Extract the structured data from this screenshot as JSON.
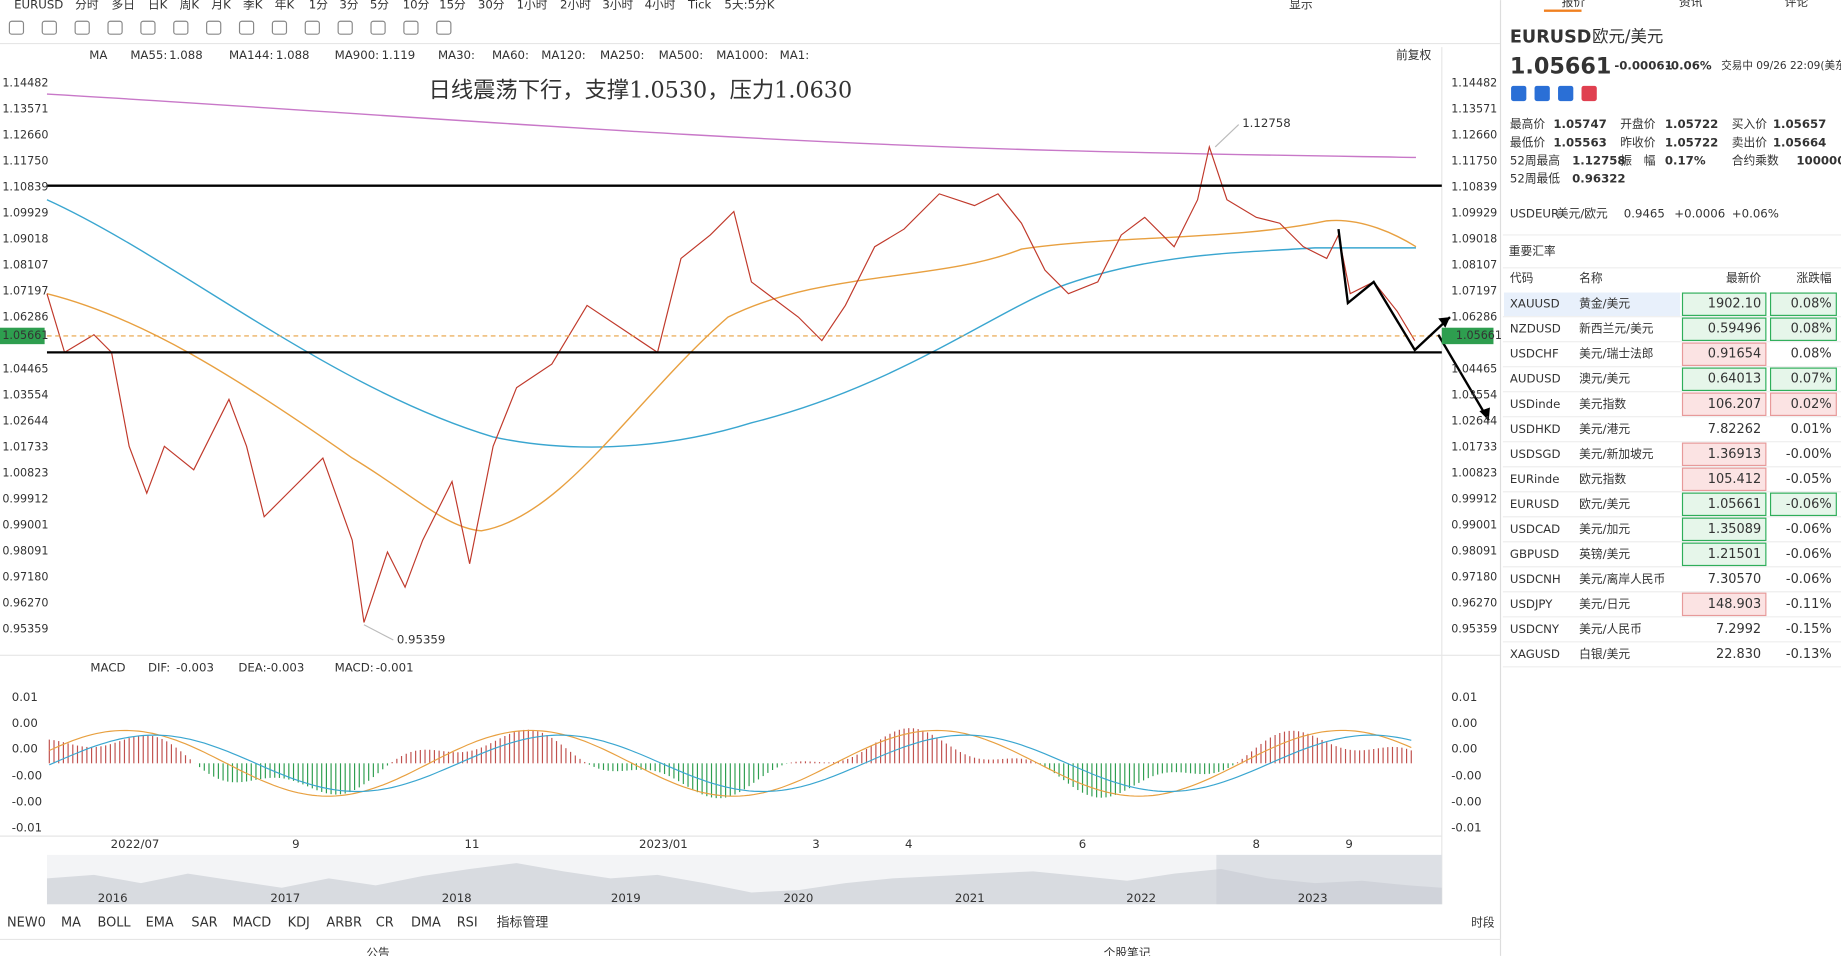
{
  "toolbar": {
    "symbol": "EURUSD",
    "periods": [
      "分时",
      "多日",
      "日K",
      "周K",
      "月K",
      "季K",
      "年K",
      "1分",
      "3分",
      "5分",
      "10分",
      "15分",
      "30分",
      "1小时",
      "2小时",
      "3小时",
      "4小时",
      "Tick",
      "5天:5分K"
    ],
    "active_period": 2,
    "display": "显示"
  },
  "chart": {
    "indicator": "MA",
    "ma": [
      {
        "name": "MA55:",
        "value": "1.088",
        "color": "#e8a040"
      },
      {
        "name": "MA144:",
        "value": "1.088",
        "color": "#3aa6d0"
      },
      {
        "name": "MA900:",
        "value": "1.119",
        "color": "#c060c0"
      }
    ],
    "ma_inactive": [
      "MA30:",
      "MA60:",
      "MA120:",
      "MA250:",
      "MA500:",
      "MA1000:",
      "MA1:"
    ],
    "adjust": "前复权",
    "annotation": "日线震荡下行，支撑1.0530，压力1.0630",
    "price_ticks": [
      "1.14482",
      "1.13571",
      "1.12660",
      "1.11750",
      "1.10839",
      "1.09929",
      "1.09018",
      "1.08107",
      "1.07197",
      "1.06286",
      "1.04465",
      "1.03554",
      "1.02644",
      "1.01733",
      "1.00823",
      "0.99912",
      "0.99001",
      "0.98091",
      "0.97180",
      "0.96270",
      "0.95359"
    ],
    "current_price": "1.05661",
    "high_label": "1.12758",
    "low_label": "0.95359"
  },
  "macd": {
    "name": "MACD",
    "params": [
      {
        "name": "DIF:",
        "value": "-0.003",
        "color": "#e8a040"
      },
      {
        "name": "DEA:",
        "value": "-0.003",
        "color": "#3aa6d0"
      },
      {
        "name": "MACD:",
        "value": "-0.001",
        "color": "#c060c0"
      }
    ],
    "ticks": [
      "0.01",
      "0.00",
      "0.00",
      "-0.00",
      "-0.00",
      "-0.01"
    ]
  },
  "x_labels": [
    "2022/07",
    "9",
    "11",
    "2023/01",
    "3",
    "4",
    "6",
    "8",
    "9"
  ],
  "navigator_years": [
    "2016",
    "2017",
    "2018",
    "2019",
    "2020",
    "2021",
    "2022",
    "2023"
  ],
  "tabs": [
    "NEW0",
    "MA",
    "BOLL",
    "EMA",
    "SAR",
    "MACD",
    "KDJ",
    "ARBR",
    "CR",
    "DMA",
    "RSI",
    "指标管理"
  ],
  "period_button": "时段",
  "footer": [
    "公告",
    "个股笔记"
  ],
  "panel": {
    "tabs": [
      "报价",
      "资讯",
      "评论"
    ],
    "symbol": "EURUSD",
    "name": "欧元/美元",
    "price": "1.05661",
    "change": "-0.00061",
    "change_pct": "-0.06%",
    "status": "交易中 09/26 22:09(美东",
    "stats": [
      [
        "最高价",
        "1.05747",
        "开盘价",
        "1.05722",
        "买入价",
        "1.05657"
      ],
      [
        "最低价",
        "1.05563",
        "昨收价",
        "1.05722",
        "卖出价",
        "1.05664"
      ],
      [
        "52周最高",
        "1.12758",
        "振　幅",
        "0.17%",
        "合约乘数",
        "100000"
      ],
      [
        "52周最低",
        "0.96322"
      ]
    ],
    "related": {
      "code": "USDEUR",
      "name": "美元/欧元",
      "price": "0.9465",
      "change": "+0.0006",
      "change_pct": "+0.06%"
    },
    "section": "重要汇率",
    "headers": [
      "代码",
      "名称",
      "最新价",
      "涨跌幅"
    ],
    "rows": [
      {
        "code": "XAUUSD",
        "name": "黄金/美元",
        "price": "1902.10",
        "change": "0.08%",
        "link": true,
        "price_style": "green-box",
        "change_style": "green-box"
      },
      {
        "code": "NZDUSD",
        "name": "新西兰元/美元",
        "price": "0.59496",
        "change": "0.08%",
        "link": false,
        "price_style": "green-box",
        "change_style": "green-box"
      },
      {
        "code": "USDCHF",
        "name": "美元/瑞士法郎",
        "price": "0.91654",
        "change": "0.08%",
        "link": false,
        "price_style": "red-box",
        "change_style": "red"
      },
      {
        "code": "AUDUSD",
        "name": "澳元/美元",
        "price": "0.64013",
        "change": "0.07%",
        "link": false,
        "price_style": "green-box",
        "change_style": "green-box"
      },
      {
        "code": "USDinde",
        "name": "美元指数",
        "price": "106.207",
        "change": "0.02%",
        "link": true,
        "price_style": "red-box",
        "change_style": "red-box"
      },
      {
        "code": "USDHKD",
        "name": "美元/港元",
        "price": "7.82262",
        "change": "0.01%",
        "link": false,
        "price_style": "red",
        "change_style": "red"
      },
      {
        "code": "USDSGD",
        "name": "美元/新加坡元",
        "price": "1.36913",
        "change": "-0.00%",
        "link": false,
        "price_style": "red-box",
        "change_style": "red"
      },
      {
        "code": "EURinde",
        "name": "欧元指数",
        "price": "105.412",
        "change": "-0.05%",
        "link": false,
        "price_style": "red-box",
        "change_style": "green"
      },
      {
        "code": "EURUSD",
        "name": "欧元/美元",
        "price": "1.05661",
        "change": "-0.06%",
        "link": true,
        "price_style": "green-box",
        "change_style": "green-box"
      },
      {
        "code": "USDCAD",
        "name": "美元/加元",
        "price": "1.35089",
        "change": "-0.06%",
        "link": true,
        "price_style": "green-box",
        "change_style": "green"
      },
      {
        "code": "GBPUSD",
        "name": "英镑/美元",
        "price": "1.21501",
        "change": "-0.06%",
        "link": true,
        "price_style": "green-box",
        "change_style": "green"
      },
      {
        "code": "USDCNH",
        "name": "美元/离岸人民币",
        "price": "7.30570",
        "change": "-0.06%",
        "link": false,
        "price_style": "green",
        "change_style": "green"
      },
      {
        "code": "USDJPY",
        "name": "美元/日元",
        "price": "148.903",
        "change": "-0.11%",
        "link": true,
        "price_style": "red-box",
        "change_style": "green"
      },
      {
        "code": "USDCNY",
        "name": "美元/人民币",
        "price": "7.2992",
        "change": "-0.15%",
        "link": false,
        "price_style": "green",
        "change_style": "green"
      },
      {
        "code": "XAGUSD",
        "name": "白银/美元",
        "price": "22.830",
        "change": "-0.13%",
        "link": false,
        "price_style": "green",
        "change_style": "green"
      }
    ]
  }
}
